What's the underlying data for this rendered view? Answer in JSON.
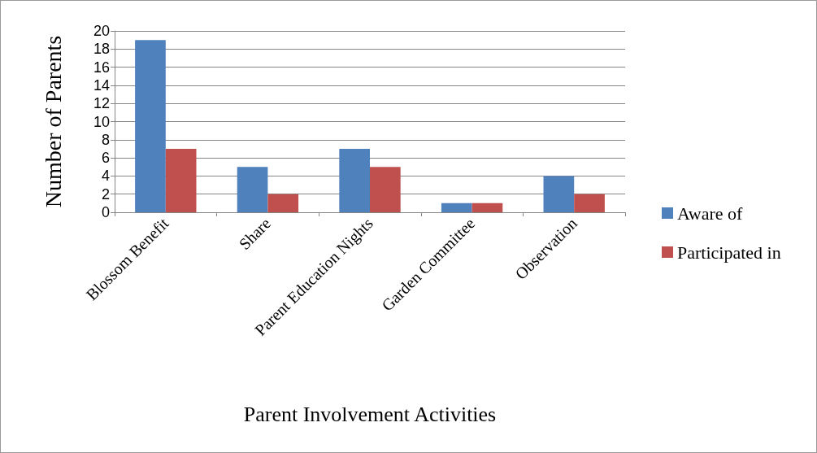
{
  "chart_data": {
    "type": "bar",
    "xlabel": "Parent Involvement Activities",
    "ylabel": "Number of Parents",
    "categories": [
      "Blossom Benefit",
      "Share",
      "Parent Education Nights",
      "Garden Committee",
      "Observation"
    ],
    "series": [
      {
        "name": "Aware of",
        "color": "#4f81bd",
        "values": [
          19,
          5,
          7,
          1,
          4
        ]
      },
      {
        "name": "Participated in",
        "color": "#c0504d",
        "values": [
          7,
          2,
          5,
          1,
          2
        ]
      }
    ],
    "ylim": [
      0,
      20
    ],
    "yticks": [
      0,
      2,
      4,
      6,
      8,
      10,
      12,
      14,
      16,
      18,
      20
    ],
    "grid": "y",
    "legend": "right"
  }
}
